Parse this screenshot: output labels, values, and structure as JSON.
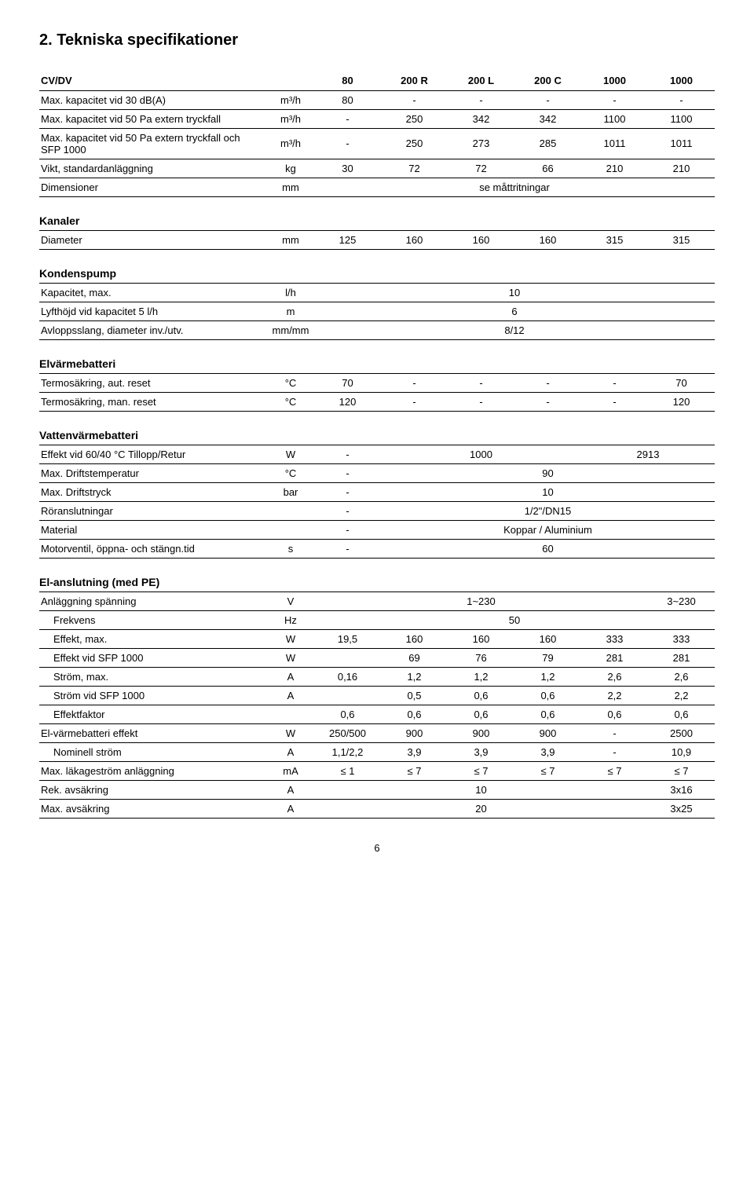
{
  "title": "2.    Tekniska specifikationer",
  "main": {
    "header": [
      "CV/DV",
      "",
      "80",
      "200 R",
      "200 L",
      "200 C",
      "1000",
      "1000"
    ],
    "rows": [
      {
        "label": "Max. kapacitet vid 30 dB(A)",
        "unit": "m³/h",
        "v": [
          "80",
          "-",
          "-",
          "-",
          "-",
          "-"
        ]
      },
      {
        "label": "Max. kapacitet vid 50 Pa extern tryckfall",
        "unit": "m³/h",
        "v": [
          "-",
          "250",
          "342",
          "342",
          "1100",
          "1100"
        ]
      },
      {
        "label": "Max. kapacitet vid 50 Pa extern tryckfall och SFP 1000",
        "unit": "m³/h",
        "v": [
          "-",
          "250",
          "273",
          "285",
          "1011",
          "1011"
        ]
      },
      {
        "label": "Vikt, standardanläggning",
        "unit": "kg",
        "v": [
          "30",
          "72",
          "72",
          "66",
          "210",
          "210"
        ]
      },
      {
        "label": "Dimensioner",
        "unit": "mm",
        "span": "se måttritningar"
      }
    ]
  },
  "kanaler": {
    "title": "Kanaler",
    "rows": [
      {
        "label": "Diameter",
        "unit": "mm",
        "v": [
          "125",
          "160",
          "160",
          "160",
          "315",
          "315"
        ]
      }
    ]
  },
  "kondens": {
    "title": "Kondenspump",
    "rows": [
      {
        "label": "Kapacitet, max.",
        "unit": "l/h",
        "span": "10"
      },
      {
        "label": "Lyfthöjd vid kapacitet 5 l/h",
        "unit": "m",
        "span": "6"
      },
      {
        "label": "Avloppsslang, diameter inv./utv.",
        "unit": "mm/mm",
        "span": "8/12"
      }
    ]
  },
  "elvarme": {
    "title": "Elvärmebatteri",
    "rows": [
      {
        "label": "Termosäkring, aut. reset",
        "unit": "°C",
        "v": [
          "70",
          "-",
          "-",
          "-",
          "-",
          "70"
        ]
      },
      {
        "label": "Termosäkring, man. reset",
        "unit": "°C",
        "v": [
          "120",
          "-",
          "-",
          "-",
          "-",
          "120"
        ]
      }
    ]
  },
  "vatten": {
    "title": "Vattenvärmebatteri",
    "rows": [
      {
        "label": "Effekt vid 60/40 °C Tillopp/Retur",
        "unit": "W",
        "c": [
          "-"
        ],
        "spans": [
          {
            "text": "1000",
            "cols": 3
          },
          {
            "text": "2913",
            "cols": 2
          }
        ]
      },
      {
        "label": "Max. Driftstemperatur",
        "unit": "°C",
        "c": [
          "-"
        ],
        "span5": "90"
      },
      {
        "label": "Max. Driftstryck",
        "unit": "bar",
        "c": [
          "-"
        ],
        "span5": "10"
      },
      {
        "label": "Röranslutningar",
        "unit": "",
        "c": [
          "-"
        ],
        "span5": "1/2\"/DN15"
      },
      {
        "label": "Material",
        "unit": "",
        "c": [
          "-"
        ],
        "span5": "Koppar / Aluminium"
      },
      {
        "label": "Motorventil, öppna- och stängn.tid",
        "unit": "s",
        "c": [
          "-"
        ],
        "span5": "60"
      }
    ]
  },
  "el": {
    "title": "El-anslutning (med PE)",
    "rows": [
      {
        "label": "Anläggning spänning",
        "unit": "V",
        "spans": [
          {
            "text": "1~230",
            "cols": 5
          },
          {
            "text": "3~230",
            "cols": 1
          }
        ]
      },
      {
        "label": "Frekvens",
        "unit": "Hz",
        "span": "50",
        "indent": true
      },
      {
        "label": "Effekt, max.",
        "unit": "W",
        "v": [
          "19,5",
          "160",
          "160",
          "160",
          "333",
          "333"
        ],
        "indent": true
      },
      {
        "label": "Effekt vid SFP 1000",
        "unit": "W",
        "v": [
          "",
          "69",
          "76",
          "79",
          "281",
          "281"
        ],
        "indent": true
      },
      {
        "label": "Ström, max.",
        "unit": "A",
        "v": [
          "0,16",
          "1,2",
          "1,2",
          "1,2",
          "2,6",
          "2,6"
        ],
        "indent": true
      },
      {
        "label": "Ström vid SFP 1000",
        "unit": "A",
        "v": [
          "",
          "0,5",
          "0,6",
          "0,6",
          "2,2",
          "2,2"
        ],
        "indent": true
      },
      {
        "label": "Effektfaktor",
        "unit": "",
        "v": [
          "0,6",
          "0,6",
          "0,6",
          "0,6",
          "0,6",
          "0,6"
        ],
        "indent": true
      },
      {
        "label": "El-värmebatteri effekt",
        "unit": "W",
        "v": [
          "250/500",
          "900",
          "900",
          "900",
          "-",
          "2500"
        ]
      },
      {
        "label": "Nominell ström",
        "unit": "A",
        "v": [
          "1,1/2,2",
          "3,9",
          "3,9",
          "3,9",
          "-",
          "10,9"
        ],
        "indent": true
      },
      {
        "label": "Max. läkageström anläggning",
        "unit": "mA",
        "v": [
          "≤ 1",
          "≤ 7",
          "≤ 7",
          "≤ 7",
          "≤ 7",
          "≤ 7"
        ]
      },
      {
        "label": "Rek. avsäkring",
        "unit": "A",
        "spans": [
          {
            "text": "10",
            "cols": 5
          },
          {
            "text": "3x16",
            "cols": 1
          }
        ]
      },
      {
        "label": "Max. avsäkring",
        "unit": "A",
        "spans": [
          {
            "text": "20",
            "cols": 5
          },
          {
            "text": "3x25",
            "cols": 1
          }
        ]
      }
    ]
  },
  "page": "6"
}
